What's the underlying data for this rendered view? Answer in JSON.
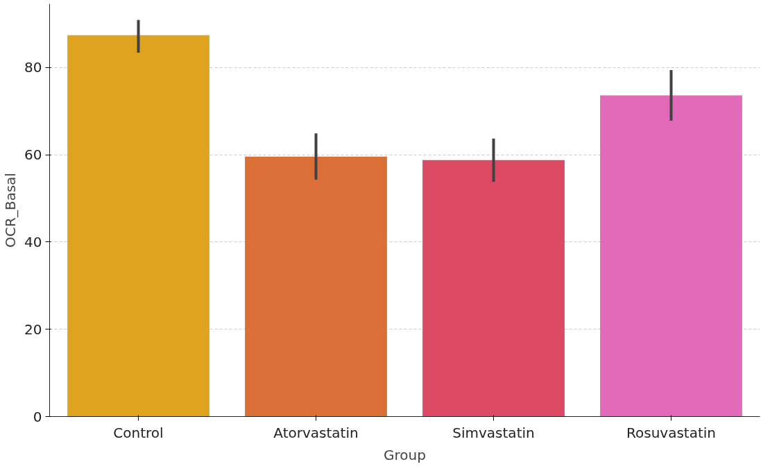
{
  "chart_data": {
    "type": "bar",
    "xlabel": "Group",
    "ylabel": "OCR_Basal",
    "categories": [
      "Control",
      "Atorvastatin",
      "Simvastatin",
      "Rosuvastatin"
    ],
    "values": [
      87.4,
      59.6,
      58.8,
      73.6
    ],
    "colors": [
      "#e0a320",
      "#da7037",
      "#dc4a64",
      "#e26bb9"
    ],
    "errors": [
      [
        83.4,
        90.9
      ],
      [
        54.3,
        64.9
      ],
      [
        53.8,
        63.7
      ],
      [
        67.8,
        79.4
      ]
    ],
    "ylim": [
      0,
      94.6
    ],
    "yticks": [
      0,
      20,
      40,
      60,
      80
    ],
    "grid": "y"
  }
}
